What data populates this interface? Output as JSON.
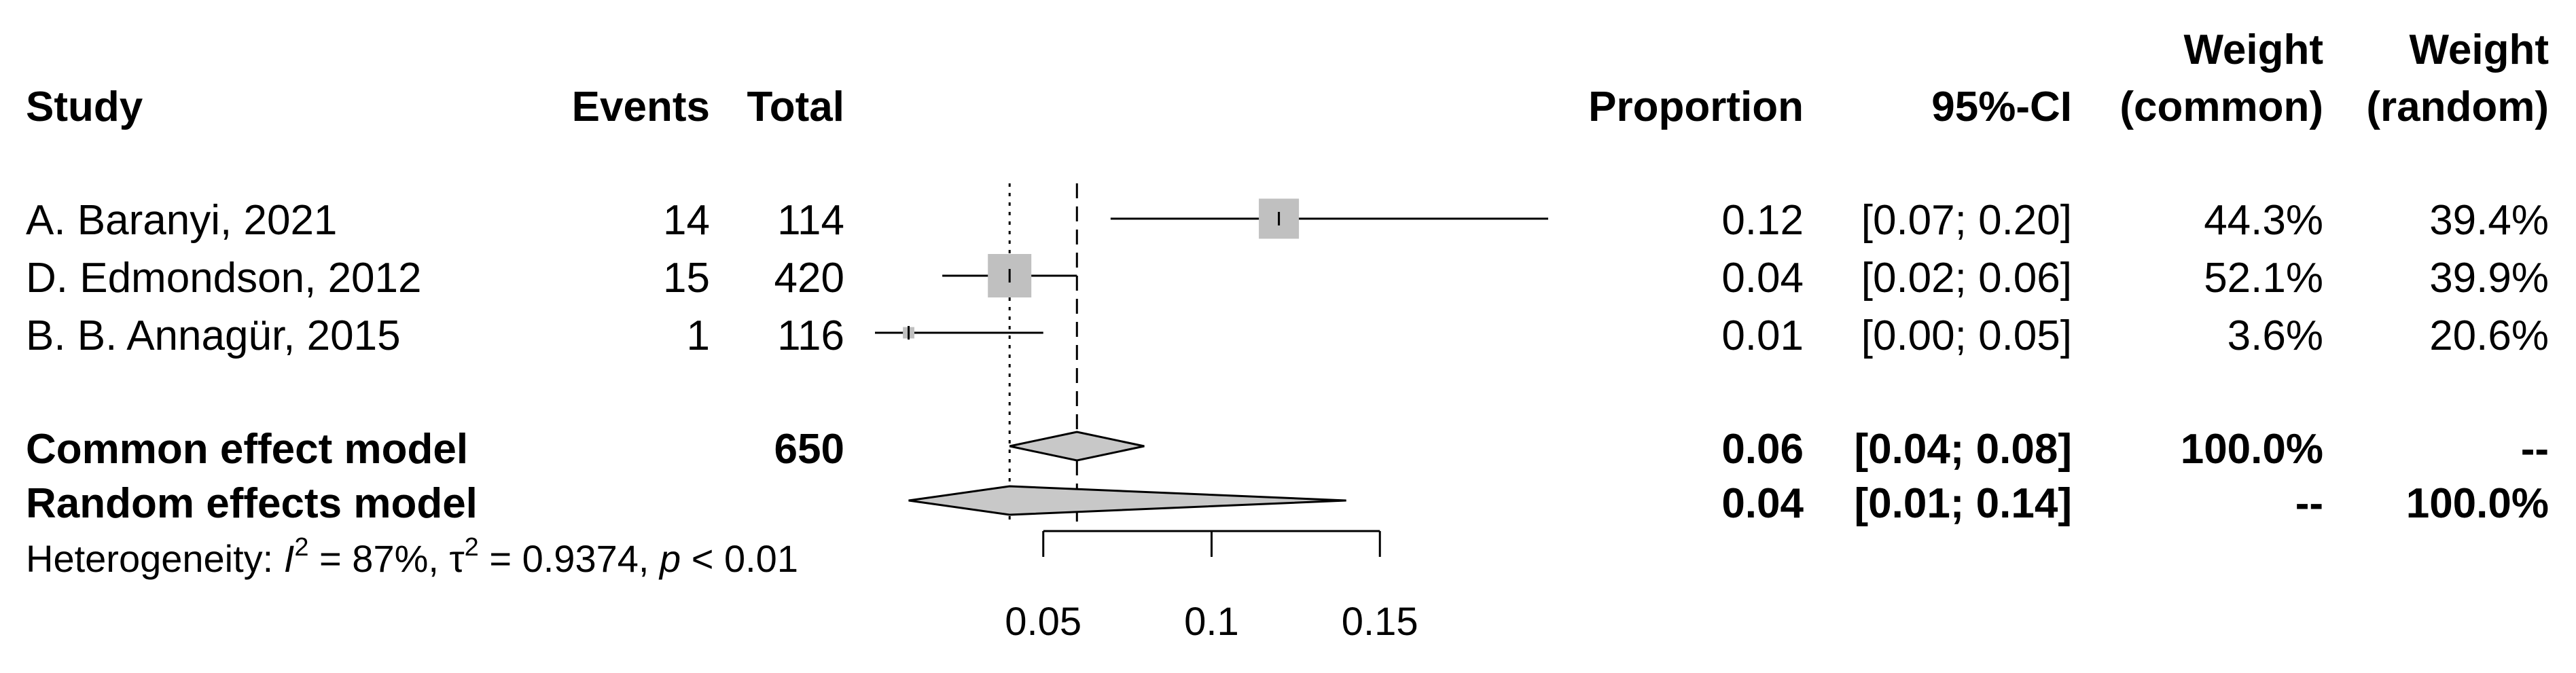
{
  "headers": {
    "study": "Study",
    "events": "Events",
    "total": "Total",
    "proportion": "Proportion",
    "ci": "95%-CI",
    "weight_common_line1": "Weight",
    "weight_common_line2": "(common)",
    "weight_random_line1": "Weight",
    "weight_random_line2": "(random)"
  },
  "chart_data": {
    "type": "forest",
    "studies": [
      {
        "study": "A. Baranyi, 2021",
        "events": "14",
        "total": "114",
        "proportion": 0.12,
        "proportion_text": "0.12",
        "ci_low": 0.07,
        "ci_high": 0.2,
        "ci_text": "[0.07; 0.20]",
        "weight_common": "44.3%",
        "weight_random": "39.4%",
        "weight_common_value": 44.3
      },
      {
        "study": "D. Edmondson, 2012",
        "events": "15",
        "total": "420",
        "proportion": 0.04,
        "proportion_text": "0.04",
        "ci_low": 0.02,
        "ci_high": 0.06,
        "ci_text": "[0.02; 0.06]",
        "weight_common": "52.1%",
        "weight_random": "39.9%",
        "weight_common_value": 52.1
      },
      {
        "study": "B. B. Annagür, 2015",
        "events": "1",
        "total": "116",
        "proportion": 0.01,
        "proportion_text": "0.01",
        "ci_low": 0.0,
        "ci_high": 0.05,
        "ci_text": "[0.00; 0.05]",
        "weight_common": "3.6%",
        "weight_random": "20.6%",
        "weight_common_value": 3.6
      }
    ],
    "common": {
      "label": "Common effect model",
      "total": "650",
      "estimate": 0.06,
      "ci_low": 0.04,
      "ci_high": 0.08,
      "estimate_text": "0.06",
      "ci_text": "[0.04; 0.08]",
      "weight_common": "100.0%",
      "weight_random": "--"
    },
    "random": {
      "label": "Random effects model",
      "estimate": 0.04,
      "ci_low": 0.01,
      "ci_high": 0.14,
      "estimate_text": "0.04",
      "ci_text": "[0.01; 0.14]",
      "weight_common": "--",
      "weight_random": "100.0%"
    },
    "heterogeneity": {
      "prefix": "Heterogeneity: ",
      "i2_symbol": "I",
      "i2_value": " = 87%, ",
      "tau2_symbol": "τ",
      "tau2_value": " = 0.9374, ",
      "p_symbol": "p",
      "p_value": " < 0.01"
    },
    "x_ticks": [
      0.05,
      0.1,
      0.15
    ],
    "x_tick_labels": [
      "0.05",
      "0.1",
      "0.15"
    ],
    "xlim": [
      0.0,
      0.2
    ],
    "reference_lines": {
      "common": 0.06,
      "random": 0.04
    },
    "colors": {
      "box": "#c0c0c0",
      "diamond": "#c8c8c8",
      "line": "#000000"
    }
  }
}
